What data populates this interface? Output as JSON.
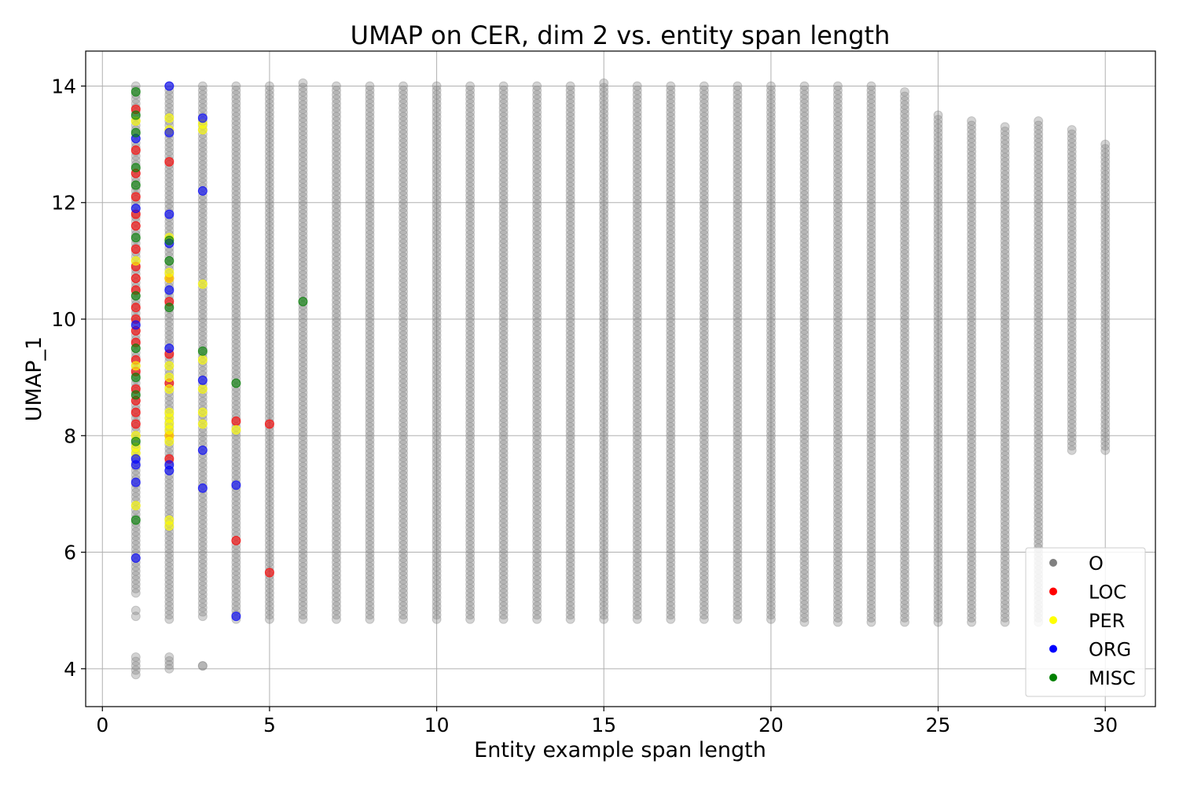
{
  "chart_data": {
    "type": "scatter",
    "title": "UMAP on CER, dim 2 vs. entity span length",
    "xlabel": "Entity example span length",
    "ylabel": "UMAP_1",
    "xlim": [
      -0.5,
      31.5
    ],
    "ylim": [
      3.35,
      14.6
    ],
    "xticks": [
      0,
      5,
      10,
      15,
      20,
      25,
      30
    ],
    "yticks": [
      4,
      6,
      8,
      10,
      12,
      14
    ],
    "grid": true,
    "legend_position": "bottom-right",
    "series_colors": {
      "O": "#808080",
      "LOC": "#ff0000",
      "PER": "#ffff00",
      "ORG": "#0000ff",
      "MISC": "#008000"
    },
    "legend": [
      "O",
      "LOC",
      "PER",
      "ORG",
      "MISC"
    ],
    "o_columns": [
      {
        "x": 1,
        "ranges": [
          [
            3.9,
            4.2
          ],
          [
            4.9,
            5.0
          ],
          [
            5.3,
            14.0
          ]
        ]
      },
      {
        "x": 2,
        "ranges": [
          [
            4.0,
            4.2
          ],
          [
            4.85,
            14.0
          ]
        ]
      },
      {
        "x": 3,
        "ranges": [
          [
            4.05,
            4.05
          ],
          [
            4.9,
            14.0
          ]
        ]
      },
      {
        "x": 4,
        "ranges": [
          [
            4.85,
            14.0
          ]
        ]
      },
      {
        "x": 5,
        "ranges": [
          [
            4.85,
            14.0
          ]
        ]
      },
      {
        "x": 6,
        "ranges": [
          [
            4.85,
            14.05
          ]
        ]
      },
      {
        "x": 7,
        "ranges": [
          [
            4.85,
            14.0
          ]
        ]
      },
      {
        "x": 8,
        "ranges": [
          [
            4.85,
            14.0
          ]
        ]
      },
      {
        "x": 9,
        "ranges": [
          [
            4.85,
            14.0
          ]
        ]
      },
      {
        "x": 10,
        "ranges": [
          [
            4.85,
            14.0
          ]
        ]
      },
      {
        "x": 11,
        "ranges": [
          [
            4.85,
            14.0
          ]
        ]
      },
      {
        "x": 12,
        "ranges": [
          [
            4.85,
            14.0
          ]
        ]
      },
      {
        "x": 13,
        "ranges": [
          [
            4.85,
            14.0
          ]
        ]
      },
      {
        "x": 14,
        "ranges": [
          [
            4.85,
            14.0
          ]
        ]
      },
      {
        "x": 15,
        "ranges": [
          [
            4.85,
            14.05
          ]
        ]
      },
      {
        "x": 16,
        "ranges": [
          [
            4.85,
            14.0
          ]
        ]
      },
      {
        "x": 17,
        "ranges": [
          [
            4.85,
            14.0
          ]
        ]
      },
      {
        "x": 18,
        "ranges": [
          [
            4.85,
            14.0
          ]
        ]
      },
      {
        "x": 19,
        "ranges": [
          [
            4.85,
            14.0
          ]
        ]
      },
      {
        "x": 20,
        "ranges": [
          [
            4.85,
            14.0
          ]
        ]
      },
      {
        "x": 21,
        "ranges": [
          [
            4.8,
            14.0
          ]
        ]
      },
      {
        "x": 22,
        "ranges": [
          [
            4.8,
            14.0
          ]
        ]
      },
      {
        "x": 23,
        "ranges": [
          [
            4.8,
            14.0
          ]
        ]
      },
      {
        "x": 24,
        "ranges": [
          [
            4.8,
            13.9
          ]
        ]
      },
      {
        "x": 25,
        "ranges": [
          [
            4.8,
            13.5
          ]
        ]
      },
      {
        "x": 26,
        "ranges": [
          [
            4.8,
            13.4
          ]
        ]
      },
      {
        "x": 27,
        "ranges": [
          [
            4.8,
            13.3
          ]
        ]
      },
      {
        "x": 28,
        "ranges": [
          [
            4.8,
            13.4
          ]
        ]
      },
      {
        "x": 29,
        "ranges": [
          [
            7.75,
            13.25
          ]
        ]
      },
      {
        "x": 30,
        "ranges": [
          [
            7.75,
            13.0
          ]
        ]
      }
    ],
    "colored_points": [
      {
        "label": "LOC",
        "points": [
          [
            1,
            13.6
          ],
          [
            1,
            12.9
          ],
          [
            1,
            12.5
          ],
          [
            1,
            12.1
          ],
          [
            1,
            11.8
          ],
          [
            1,
            11.6
          ],
          [
            1,
            11.2
          ],
          [
            1,
            10.9
          ],
          [
            1,
            10.7
          ],
          [
            1,
            10.5
          ],
          [
            1,
            10.2
          ],
          [
            1,
            10.0
          ],
          [
            1,
            9.8
          ],
          [
            1,
            9.6
          ],
          [
            1,
            9.3
          ],
          [
            1,
            9.1
          ],
          [
            1,
            8.8
          ],
          [
            1,
            8.6
          ],
          [
            1,
            8.4
          ],
          [
            1,
            8.2
          ],
          [
            2,
            12.7
          ],
          [
            2,
            10.7
          ],
          [
            2,
            10.3
          ],
          [
            2,
            9.4
          ],
          [
            2,
            8.9
          ],
          [
            2,
            8.0
          ],
          [
            2,
            7.6
          ],
          [
            4,
            8.25
          ],
          [
            4,
            6.2
          ],
          [
            5,
            8.2
          ],
          [
            5,
            5.65
          ]
        ]
      },
      {
        "label": "PER",
        "points": [
          [
            1,
            13.4
          ],
          [
            1,
            11.0
          ],
          [
            1,
            9.2
          ],
          [
            1,
            8.0
          ],
          [
            1,
            7.8
          ],
          [
            1,
            7.7
          ],
          [
            1,
            6.8
          ],
          [
            2,
            13.45
          ],
          [
            2,
            13.25
          ],
          [
            2,
            11.4
          ],
          [
            2,
            10.8
          ],
          [
            2,
            10.7
          ],
          [
            2,
            9.2
          ],
          [
            2,
            9.0
          ],
          [
            2,
            8.8
          ],
          [
            2,
            8.4
          ],
          [
            2,
            8.3
          ],
          [
            2,
            8.2
          ],
          [
            2,
            8.1
          ],
          [
            2,
            8.0
          ],
          [
            2,
            7.9
          ],
          [
            2,
            6.55
          ],
          [
            2,
            6.45
          ],
          [
            3,
            13.35
          ],
          [
            3,
            13.25
          ],
          [
            3,
            10.6
          ],
          [
            3,
            9.3
          ],
          [
            3,
            8.8
          ],
          [
            3,
            8.4
          ],
          [
            3,
            8.2
          ],
          [
            4,
            8.1
          ]
        ]
      },
      {
        "label": "ORG",
        "points": [
          [
            1,
            13.1
          ],
          [
            1,
            11.9
          ],
          [
            1,
            9.9
          ],
          [
            1,
            7.6
          ],
          [
            1,
            7.5
          ],
          [
            1,
            7.2
          ],
          [
            1,
            5.9
          ],
          [
            2,
            14.0
          ],
          [
            2,
            13.2
          ],
          [
            2,
            11.8
          ],
          [
            2,
            11.3
          ],
          [
            2,
            10.5
          ],
          [
            2,
            9.5
          ],
          [
            2,
            7.5
          ],
          [
            2,
            7.4
          ],
          [
            3,
            13.45
          ],
          [
            3,
            12.2
          ],
          [
            3,
            8.95
          ],
          [
            3,
            7.75
          ],
          [
            3,
            7.1
          ],
          [
            4,
            7.15
          ],
          [
            4,
            4.9
          ]
        ]
      },
      {
        "label": "MISC",
        "points": [
          [
            1,
            13.9
          ],
          [
            1,
            13.5
          ],
          [
            1,
            13.2
          ],
          [
            1,
            12.6
          ],
          [
            1,
            12.3
          ],
          [
            1,
            11.4
          ],
          [
            1,
            10.4
          ],
          [
            1,
            9.5
          ],
          [
            1,
            9.0
          ],
          [
            1,
            8.7
          ],
          [
            1,
            7.9
          ],
          [
            1,
            6.55
          ],
          [
            2,
            11.35
          ],
          [
            2,
            11.0
          ],
          [
            2,
            10.2
          ],
          [
            3,
            9.45
          ],
          [
            4,
            8.9
          ],
          [
            6,
            10.3
          ]
        ]
      }
    ]
  }
}
